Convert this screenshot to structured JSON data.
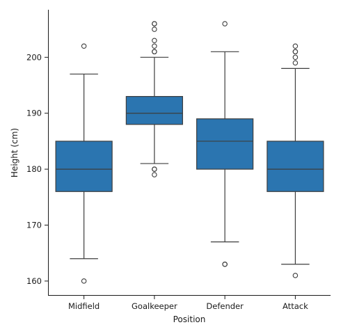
{
  "chart_data": {
    "type": "box",
    "title": "",
    "xlabel": "Position",
    "ylabel": "Height (cm)",
    "ylim": [
      157.5,
      208.5
    ],
    "y_ticks": [
      160,
      170,
      180,
      190,
      200
    ],
    "grid": false,
    "box_color": "#2b75b0",
    "line_color": "#3d3d3d",
    "categories": [
      "Midfield",
      "Goalkeeper",
      "Defender",
      "Attack"
    ],
    "boxes": [
      {
        "category": "Midfield",
        "whisker_low": 164,
        "q1": 176,
        "median": 180,
        "q3": 185,
        "whisker_high": 197,
        "outliers": [
          160,
          202
        ]
      },
      {
        "category": "Goalkeeper",
        "whisker_low": 181,
        "q1": 188,
        "median": 190,
        "q3": 193,
        "whisker_high": 200,
        "outliers": [
          179,
          180,
          180,
          201,
          201,
          202,
          203,
          205,
          206,
          206
        ]
      },
      {
        "category": "Defender",
        "whisker_low": 167,
        "q1": 180,
        "median": 185,
        "q3": 189,
        "whisker_high": 201,
        "outliers": [
          163,
          163,
          206
        ]
      },
      {
        "category": "Attack",
        "whisker_low": 163,
        "q1": 176,
        "median": 180,
        "q3": 185,
        "whisker_high": 198,
        "outliers": [
          161,
          199,
          200,
          201,
          201,
          202
        ]
      }
    ]
  }
}
